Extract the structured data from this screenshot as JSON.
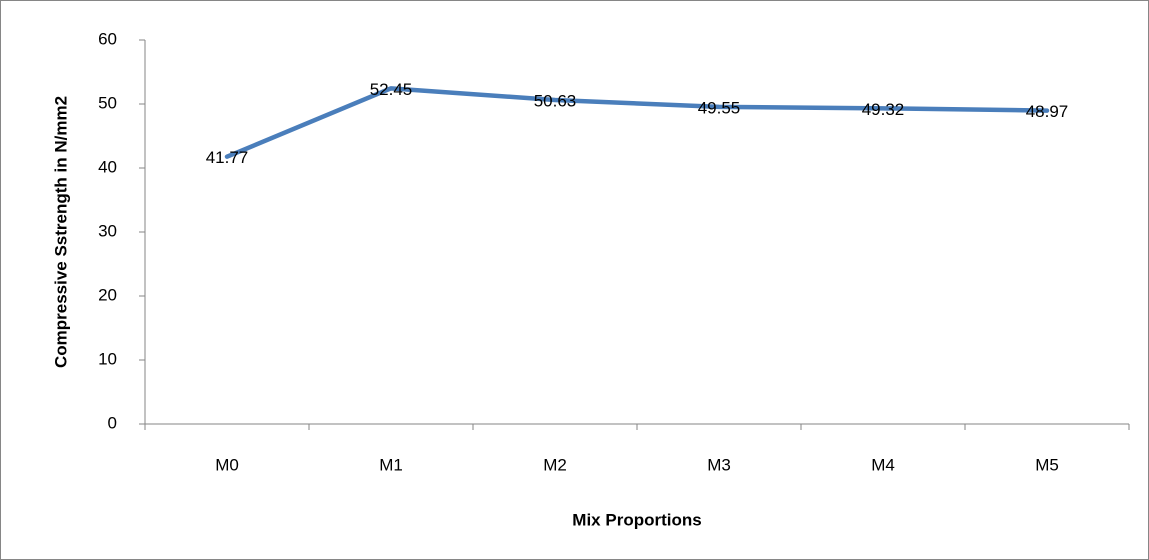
{
  "chart_data": {
    "type": "line",
    "x_label": "Mix Proportions",
    "y_label": "Compressive Sstrength in N/mm2",
    "categories": [
      "M0",
      "M1",
      "M2",
      "M3",
      "M4",
      "M5"
    ],
    "values": [
      41.77,
      52.45,
      50.63,
      49.55,
      49.32,
      48.97
    ],
    "color": "#4a7ebb",
    "ylim": [
      0,
      60
    ],
    "yticks": [
      0,
      10,
      20,
      30,
      40,
      50,
      60
    ],
    "grid": false,
    "data_labels": true
  }
}
